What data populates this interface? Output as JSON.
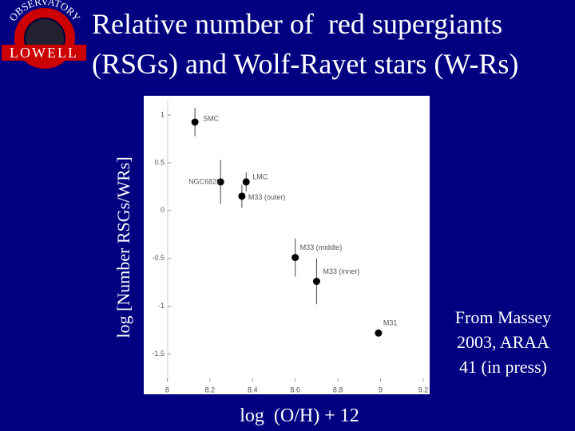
{
  "logo": {
    "arc": "OBSERVATORY",
    "name": "LOWELL"
  },
  "chart_data": {
    "type": "scatter",
    "title": [
      "Relative number of  red supergiants",
      "(RSGs) and Wolf-Rayet stars (W-Rs)"
    ],
    "x_label": "log  (O/H) + 12",
    "y_label": "log [Number RSGs/WRs]",
    "note": [
      "From Massey",
      "2003, ARAA",
      "41 (in press)"
    ],
    "labels": [
      "SMC",
      "NGC6822",
      "LMC",
      "M33 (outer)",
      "M33 (middle)",
      "M33 (inner)",
      "M31"
    ],
    "x": [
      8.13,
      8.25,
      8.37,
      8.35,
      8.6,
      8.7,
      8.99
    ],
    "values": [
      0.925,
      0.3,
      0.3,
      0.15,
      -0.49,
      -0.74,
      -1.28
    ],
    "errors": [
      0.15,
      0.23,
      0.1,
      0.12,
      0.2,
      0.24,
      null
    ],
    "color": "#000000",
    "xlim": [
      7.89,
      9.23
    ],
    "xticks": [
      8,
      8.2,
      8.4,
      8.6,
      8.8,
      9,
      9.2
    ],
    "ylim": [
      -1.92,
      1.2
    ],
    "yticks": [
      1,
      0.5,
      0,
      -0.5,
      -1,
      -1.5
    ]
  }
}
